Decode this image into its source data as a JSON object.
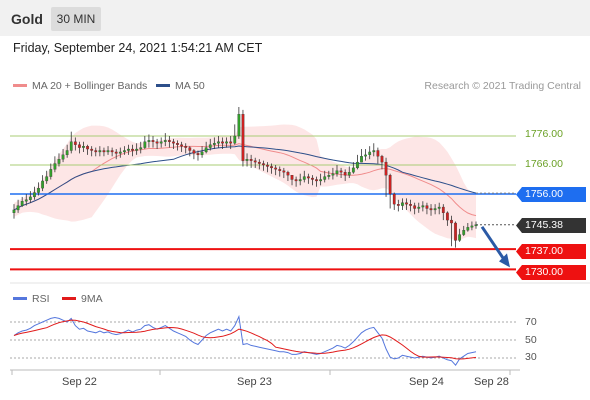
{
  "header": {
    "title": "Gold",
    "timeframe": "30 MIN"
  },
  "timestamp": "Friday, September 24, 2021 1:54:21 AM CET",
  "legend": {
    "ma20": {
      "label": "MA 20 + Bollinger Bands",
      "color": "#f08c8c"
    },
    "ma50": {
      "label": "MA 50",
      "color": "#2d4f8a"
    },
    "copyright": "Research © 2021 Trading Central"
  },
  "rsi_legend": {
    "rsi": {
      "label": "RSI",
      "color": "#5577dd"
    },
    "ma9": {
      "label": "9MA",
      "color": "#e11b1b"
    }
  },
  "levels": {
    "resistance2": {
      "label": "1776.00",
      "value": 1776.0,
      "color": "#a9cc75",
      "text_color": "#6aa025"
    },
    "resistance1": {
      "label": "1766.00",
      "value": 1766.0,
      "color": "#a9cc75",
      "text_color": "#6aa025"
    },
    "pivot": {
      "label": "1756.00",
      "value": 1756.0,
      "color": "#1e6ef0"
    },
    "last": {
      "label": "1745.38",
      "value": 1745.38,
      "color": "#333333"
    },
    "support1": {
      "label": "1737.00",
      "value": 1737.0,
      "color": "#ee1111"
    },
    "support2": {
      "label": "1730.00",
      "value": 1730.0,
      "color": "#ee1111"
    }
  },
  "x_axis": {
    "labels": [
      "Sep 22",
      "Sep 23",
      "Sep 24",
      "Sep 28"
    ]
  },
  "rsi_axis": {
    "labels": [
      "70",
      "50",
      "30"
    ]
  },
  "chart_data": {
    "type": "candlestick",
    "title": "Gold",
    "timeframe": "30 MIN",
    "ylim": [
      1728,
      1790
    ],
    "close": [
      1750.5,
      1752.0,
      1753.5,
      1754.0,
      1755.0,
      1756.5,
      1758.0,
      1760.5,
      1762.0,
      1764.5,
      1766.5,
      1768.0,
      1769.5,
      1771.0,
      1774.0,
      1773.0,
      1772.0,
      1772.5,
      1771.5,
      1771.0,
      1770.5,
      1771.0,
      1770.5,
      1771.0,
      1770.5,
      1770.0,
      1770.5,
      1771.0,
      1771.5,
      1771.0,
      1771.5,
      1772.0,
      1774.0,
      1774.5,
      1774.0,
      1773.5,
      1774.0,
      1774.5,
      1774.0,
      1773.5,
      1773.0,
      1772.5,
      1772.0,
      1771.0,
      1770.0,
      1769.5,
      1770.5,
      1772.0,
      1773.0,
      1773.5,
      1774.0,
      1773.5,
      1774.0,
      1773.5,
      1776.0,
      1783.5,
      1767.5,
      1768.0,
      1767.5,
      1767.0,
      1766.5,
      1766.0,
      1765.5,
      1765.0,
      1764.5,
      1764.0,
      1763.5,
      1762.5,
      1761.0,
      1760.5,
      1761.0,
      1762.0,
      1761.5,
      1761.0,
      1760.5,
      1761.0,
      1762.0,
      1762.5,
      1763.0,
      1764.0,
      1763.5,
      1762.5,
      1763.5,
      1765.0,
      1767.0,
      1769.0,
      1769.5,
      1770.5,
      1771.0,
      1769.0,
      1767.0,
      1762.5,
      1756.0,
      1752.5,
      1752.0,
      1753.0,
      1752.5,
      1752.0,
      1751.0,
      1751.5,
      1752.0,
      1751.0,
      1750.5,
      1751.0,
      1751.5,
      1749.5,
      1747.0,
      1746.0,
      1740.0,
      1742.0,
      1743.5,
      1744.5,
      1745.0,
      1745.38
    ],
    "high": [
      1752.5,
      1754.0,
      1755.0,
      1756.0,
      1757.0,
      1758.5,
      1760.0,
      1762.5,
      1764.0,
      1766.5,
      1769.0,
      1770.0,
      1771.5,
      1773.0,
      1777.5,
      1775.5,
      1774.0,
      1774.0,
      1773.0,
      1772.5,
      1772.0,
      1772.5,
      1772.0,
      1772.5,
      1772.0,
      1771.5,
      1772.0,
      1772.5,
      1773.0,
      1773.0,
      1773.5,
      1774.0,
      1776.0,
      1776.5,
      1776.0,
      1775.0,
      1775.5,
      1777.0,
      1776.0,
      1775.0,
      1774.5,
      1774.0,
      1773.5,
      1772.5,
      1771.5,
      1771.0,
      1772.5,
      1774.0,
      1775.0,
      1775.5,
      1776.0,
      1775.5,
      1775.5,
      1776.0,
      1780.0,
      1786.0,
      1785.0,
      1770.0,
      1769.5,
      1768.5,
      1768.0,
      1767.5,
      1767.0,
      1766.5,
      1766.0,
      1765.5,
      1765.0,
      1764.0,
      1762.5,
      1762.0,
      1763.0,
      1764.0,
      1763.0,
      1762.5,
      1762.0,
      1763.0,
      1764.0,
      1764.0,
      1765.0,
      1766.0,
      1765.0,
      1764.5,
      1765.5,
      1767.0,
      1769.5,
      1771.5,
      1771.5,
      1772.5,
      1773.5,
      1772.0,
      1769.5,
      1768.5,
      1763.0,
      1756.5,
      1754.0,
      1754.5,
      1754.5,
      1754.0,
      1753.0,
      1753.0,
      1753.5,
      1753.0,
      1752.5,
      1752.5,
      1753.0,
      1752.5,
      1750.0,
      1748.5,
      1746.5,
      1744.0,
      1745.0,
      1746.0,
      1746.5,
      1746.5
    ],
    "low": [
      1747.5,
      1749.5,
      1751.5,
      1752.0,
      1753.0,
      1754.0,
      1755.5,
      1757.0,
      1759.5,
      1761.0,
      1763.5,
      1765.5,
      1767.0,
      1768.5,
      1770.0,
      1771.0,
      1770.0,
      1770.5,
      1769.5,
      1769.0,
      1769.0,
      1769.0,
      1769.0,
      1769.5,
      1769.0,
      1768.0,
      1768.5,
      1769.5,
      1769.5,
      1769.0,
      1769.5,
      1770.0,
      1771.5,
      1772.0,
      1772.0,
      1771.5,
      1772.0,
      1772.5,
      1772.0,
      1771.5,
      1771.0,
      1770.5,
      1770.0,
      1769.0,
      1768.0,
      1767.5,
      1768.5,
      1770.0,
      1771.0,
      1771.5,
      1772.0,
      1771.5,
      1772.0,
      1771.5,
      1773.0,
      1775.0,
      1765.5,
      1765.5,
      1765.0,
      1765.0,
      1764.5,
      1764.0,
      1763.5,
      1763.0,
      1762.5,
      1762.0,
      1761.5,
      1760.5,
      1759.0,
      1758.5,
      1759.0,
      1760.0,
      1759.5,
      1759.0,
      1758.5,
      1759.0,
      1760.0,
      1761.0,
      1761.0,
      1762.0,
      1761.5,
      1760.5,
      1761.5,
      1763.0,
      1764.5,
      1767.0,
      1767.5,
      1768.0,
      1769.0,
      1766.5,
      1764.5,
      1755.0,
      1751.0,
      1750.5,
      1750.0,
      1750.5,
      1750.5,
      1750.0,
      1749.0,
      1749.5,
      1750.0,
      1749.0,
      1748.5,
      1749.0,
      1749.0,
      1747.0,
      1745.0,
      1738.0,
      1737.5,
      1739.5,
      1741.5,
      1743.0,
      1743.5,
      1744.0
    ],
    "rsi": [
      55,
      58,
      60,
      61,
      63,
      66,
      68,
      70,
      72,
      74,
      75,
      74,
      72,
      70,
      74,
      66,
      62,
      63,
      60,
      59,
      58,
      60,
      58,
      59,
      57,
      56,
      57,
      59,
      61,
      59,
      61,
      62,
      66,
      67,
      64,
      62,
      64,
      66,
      63,
      60,
      58,
      56,
      54,
      50,
      47,
      45,
      50,
      55,
      58,
      60,
      62,
      60,
      62,
      60,
      66,
      76,
      45,
      46,
      44,
      43,
      42,
      41,
      40,
      39,
      38,
      37,
      37,
      36,
      34,
      34,
      35,
      37,
      36,
      35,
      34,
      35,
      37,
      39,
      41,
      44,
      43,
      41,
      44,
      48,
      53,
      58,
      61,
      63,
      64,
      58,
      52,
      40,
      31,
      29,
      30,
      33,
      32,
      31,
      30,
      31,
      32,
      31,
      30,
      31,
      32,
      30,
      28,
      27,
      22,
      29,
      32,
      35,
      36,
      37
    ],
    "rsi_levels": [
      70,
      50,
      30
    ],
    "annotation": "Projected move from 1745.38 toward 1730.00"
  }
}
